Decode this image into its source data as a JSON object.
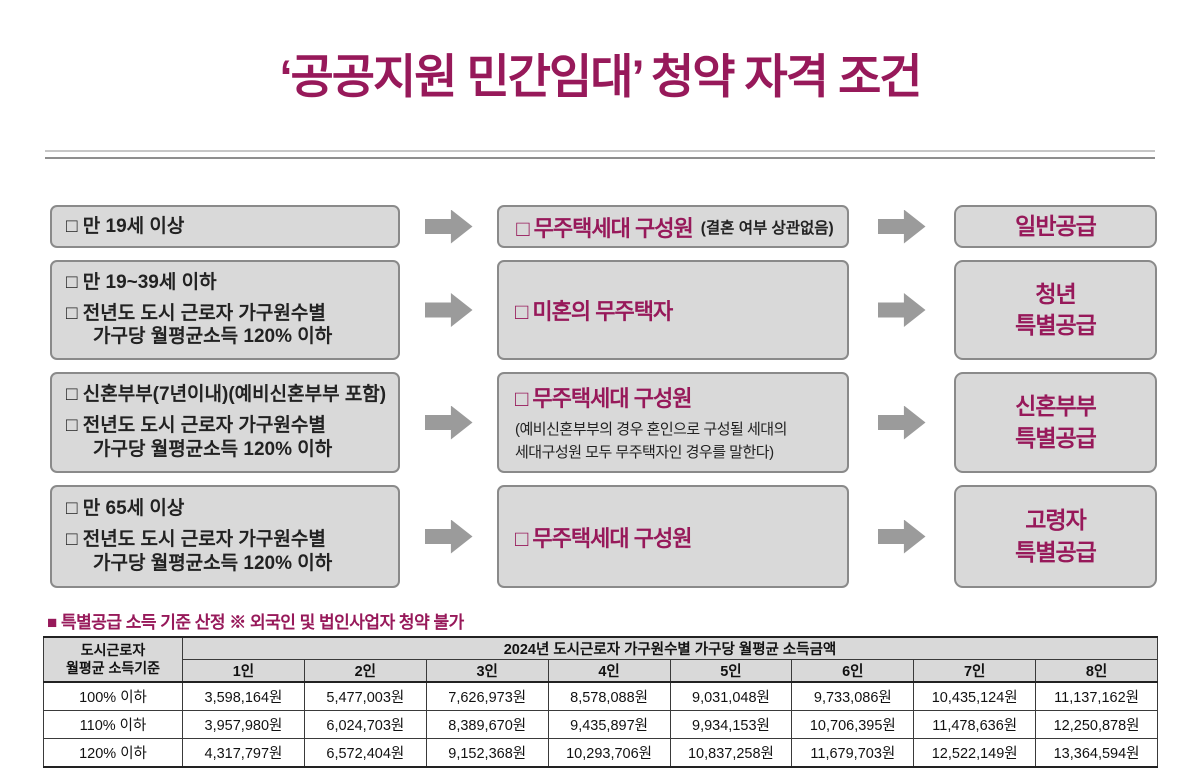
{
  "title": "‘공공지원 민간임대’ 청약 자격 조건",
  "colors": {
    "accent_magenta": "#97195a",
    "box_fill": "#d9d9d9",
    "box_border": "#8a8a8a",
    "arrow_gray": "#9b9b9b",
    "table_border": "#3a3a3a"
  },
  "rows": [
    {
      "left": {
        "item1": "□ 만 19세 이상"
      },
      "middle": {
        "title": "□ 무주택세대 구성원",
        "suffix": "(결혼 여부 상관없음)"
      },
      "right": "일반공급"
    },
    {
      "left": {
        "item1": "□ 만 19~39세 이하",
        "item2": "□ 전년도 도시 근로자 가구원수별",
        "item2b": "가구당 월평균소득 120% 이하"
      },
      "middle": {
        "title": "□ 미혼의 무주택자"
      },
      "right": "청년\n특별공급"
    },
    {
      "left": {
        "item1": "□ 신혼부부(7년이내)(예비신혼부부 포함)",
        "item2": "□ 전년도 도시 근로자 가구원수별",
        "item2b": "가구당 월평균소득 120% 이하"
      },
      "middle": {
        "title": "□ 무주택세대 구성원",
        "note": "(예비신혼부부의 경우 혼인으로 구성될 세대의\n세대구성원 모두 무주택자인 경우를 말한다)"
      },
      "right": "신혼부부\n특별공급"
    },
    {
      "left": {
        "item1": "□ 만 65세 이상",
        "item2": "□ 전년도 도시 근로자 가구원수별",
        "item2b": "가구당 월평균소득 120% 이하"
      },
      "middle": {
        "title": "□ 무주택세대 구성원"
      },
      "right": "고령자\n특별공급"
    }
  ],
  "note": "■ 특별공급 소득 기준 산정  ※ 외국인 및 법인사업자 청약 불가",
  "table": {
    "corner_header": "도시근로자\n월평균 소득기준",
    "span_header": "2024년 도시근로자 가구원수별 가구당 월평균 소득금액",
    "col_headers": [
      "1인",
      "2인",
      "3인",
      "4인",
      "5인",
      "6인",
      "7인",
      "8인"
    ],
    "rows": [
      {
        "label": "100% 이하",
        "values": [
          "3,598,164원",
          "5,477,003원",
          "7,626,973원",
          "8,578,088원",
          "9,031,048원",
          "9,733,086원",
          "10,435,124원",
          "11,137,162원"
        ]
      },
      {
        "label": "110% 이하",
        "values": [
          "3,957,980원",
          "6,024,703원",
          "8,389,670원",
          "9,435,897원",
          "9,934,153원",
          "10,706,395원",
          "11,478,636원",
          "12,250,878원"
        ]
      },
      {
        "label": "120% 이하",
        "values": [
          "4,317,797원",
          "6,572,404원",
          "9,152,368원",
          "10,293,706원",
          "10,837,258원",
          "11,679,703원",
          "12,522,149원",
          "13,364,594원"
        ]
      }
    ]
  }
}
